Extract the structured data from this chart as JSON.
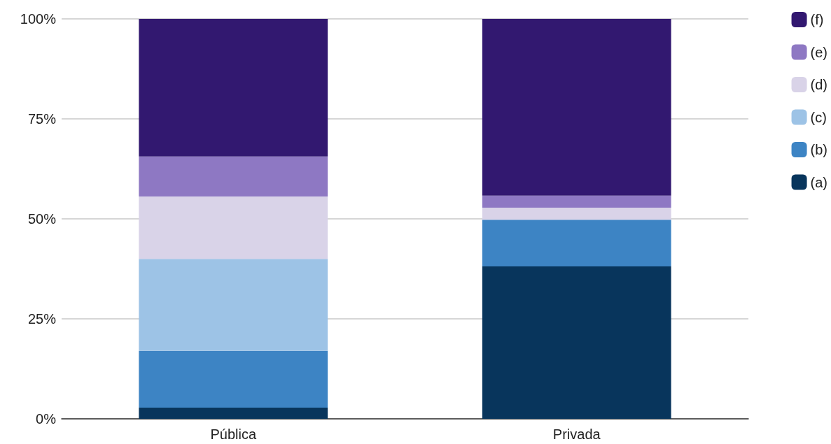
{
  "chart_data": {
    "type": "bar",
    "stacked": true,
    "categories": [
      "Pública",
      "Privada"
    ],
    "series": [
      {
        "name": "(a)",
        "color": "#08355c",
        "values": [
          2.8,
          38.1
        ]
      },
      {
        "name": "(b)",
        "color": "#3d84c4",
        "values": [
          14.2,
          11.7
        ]
      },
      {
        "name": "(c)",
        "color": "#9dc3e6",
        "values": [
          23,
          0
        ]
      },
      {
        "name": "(d)",
        "color": "#d9d3e8",
        "values": [
          15.6,
          3
        ]
      },
      {
        "name": "(e)",
        "color": "#8e78c3",
        "values": [
          10,
          3
        ]
      },
      {
        "name": "(f)",
        "color": "#321870",
        "values": [
          34.4,
          44.2
        ]
      }
    ],
    "ylim": [
      0,
      100
    ],
    "yticks": [
      {
        "value": 0,
        "label": "0%"
      },
      {
        "value": 25,
        "label": "25%"
      },
      {
        "value": 50,
        "label": "50%"
      },
      {
        "value": 75,
        "label": "75%"
      },
      {
        "value": 100,
        "label": "100%"
      }
    ],
    "grid": "y",
    "legend": "right"
  }
}
